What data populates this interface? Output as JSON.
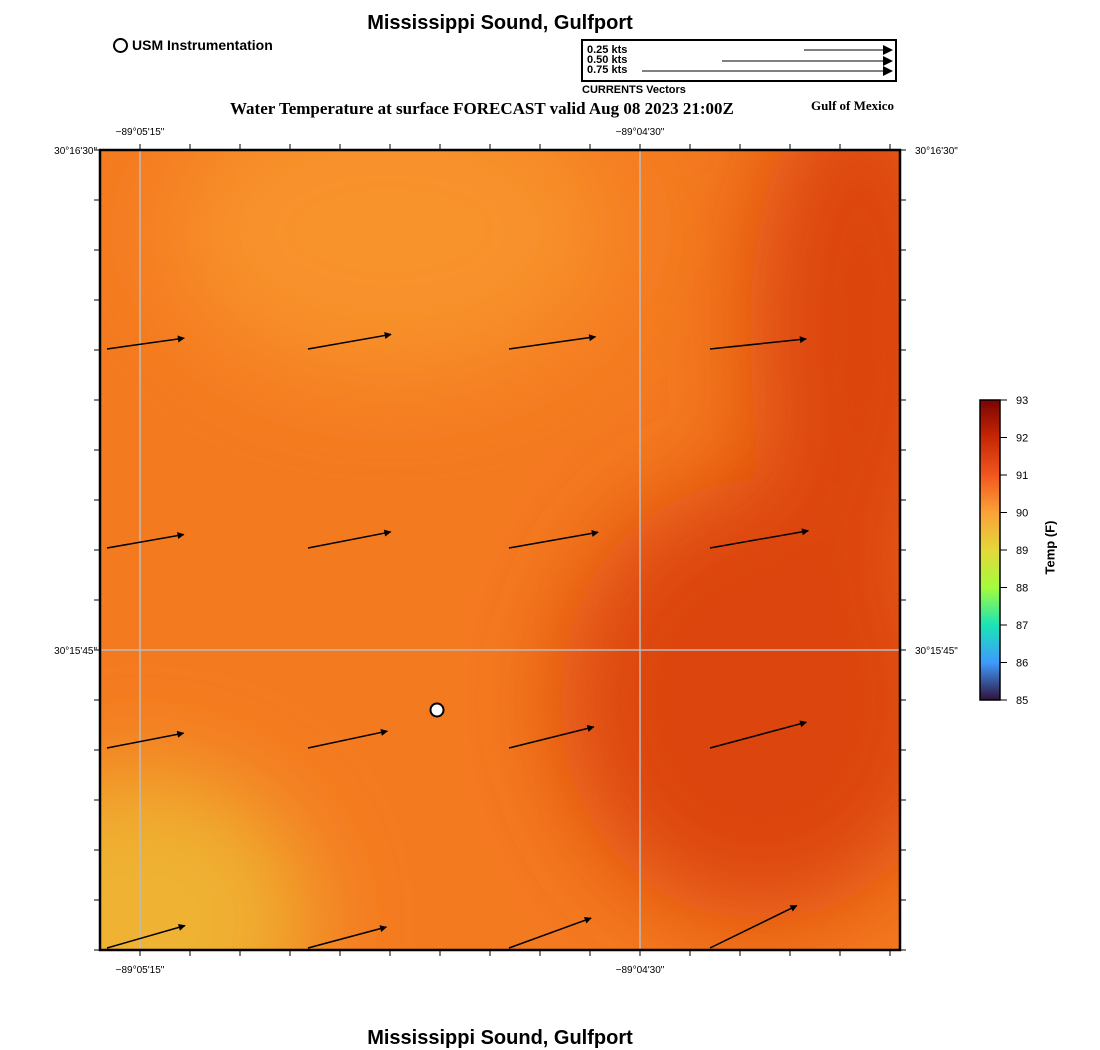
{
  "header": {
    "title": "Mississippi Sound, Gulfport",
    "subtitle": "Water Temperature at surface FORECAST valid Aug 08 2023 21:00Z",
    "region": "Gulf of Mexico"
  },
  "footer": {
    "title": "Mississippi Sound, Gulfport"
  },
  "legend": {
    "station_label": "USM Instrumentation",
    "vector_caption": "CURRENTS Vectors",
    "vector_scales": [
      "0.25 kts",
      "0.50 kts",
      "0.75 kts"
    ]
  },
  "axes": {
    "lon_ticks": [
      "−89°05'15\"",
      "−89°04'30\""
    ],
    "lat_ticks": [
      "30°16'30\"",
      "30°15'45\""
    ]
  },
  "colorbar": {
    "title": "Temp (F)",
    "ticks": [
      "93",
      "92",
      "91",
      "90",
      "89",
      "88",
      "87",
      "86",
      "85"
    ],
    "range": [
      85,
      93
    ]
  },
  "colors": {
    "warm_orange": "#f47a20",
    "deep_orange": "#dc4410",
    "light_orange": "#f8922a",
    "gold": "#efb233",
    "grid": "#bbbbbb"
  },
  "map": {
    "station_marker": "usm-station",
    "current_vectors": [
      {
        "row": 1,
        "col": 1,
        "speed_kts": 0.25,
        "direction_deg": 82
      },
      {
        "row": 1,
        "col": 2,
        "speed_kts": 0.27,
        "direction_deg": 80
      },
      {
        "row": 1,
        "col": 3,
        "speed_kts": 0.28,
        "direction_deg": 82
      },
      {
        "row": 1,
        "col": 4,
        "speed_kts": 0.31,
        "direction_deg": 84
      },
      {
        "row": 2,
        "col": 1,
        "speed_kts": 0.25,
        "direction_deg": 80
      },
      {
        "row": 2,
        "col": 2,
        "speed_kts": 0.27,
        "direction_deg": 79
      },
      {
        "row": 2,
        "col": 3,
        "speed_kts": 0.29,
        "direction_deg": 80
      },
      {
        "row": 2,
        "col": 4,
        "speed_kts": 0.32,
        "direction_deg": 80
      },
      {
        "row": 3,
        "col": 1,
        "speed_kts": 0.25,
        "direction_deg": 79
      },
      {
        "row": 3,
        "col": 2,
        "speed_kts": 0.26,
        "direction_deg": 78
      },
      {
        "row": 3,
        "col": 3,
        "speed_kts": 0.28,
        "direction_deg": 76
      },
      {
        "row": 3,
        "col": 4,
        "speed_kts": 0.32,
        "direction_deg": 75
      },
      {
        "row": 4,
        "col": 1,
        "speed_kts": 0.26,
        "direction_deg": 74
      },
      {
        "row": 4,
        "col": 2,
        "speed_kts": 0.26,
        "direction_deg": 75
      },
      {
        "row": 4,
        "col": 3,
        "speed_kts": 0.28,
        "direction_deg": 70
      },
      {
        "row": 4,
        "col": 4,
        "speed_kts": 0.31,
        "direction_deg": 64
      }
    ]
  }
}
